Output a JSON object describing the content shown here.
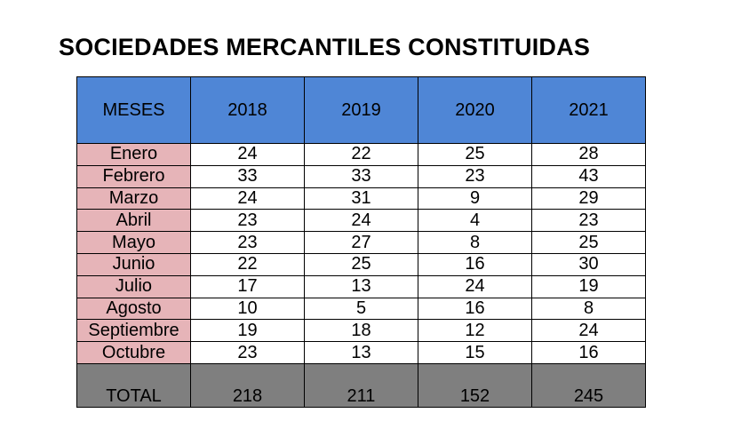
{
  "title": "SOCIEDADES MERCANTILES CONSTITUIDAS",
  "table": {
    "headers": [
      "MESES",
      "2018",
      "2019",
      "2020",
      "2021"
    ],
    "rows": [
      {
        "month": "Enero",
        "values": [
          "24",
          "22",
          "25",
          "28"
        ]
      },
      {
        "month": "Febrero",
        "values": [
          "33",
          "33",
          "23",
          "43"
        ]
      },
      {
        "month": "Marzo",
        "values": [
          "24",
          "31",
          "9",
          "29"
        ]
      },
      {
        "month": "Abril",
        "values": [
          "23",
          "24",
          "4",
          "23"
        ]
      },
      {
        "month": "Mayo",
        "values": [
          "23",
          "27",
          "8",
          "25"
        ]
      },
      {
        "month": "Junio",
        "values": [
          "22",
          "25",
          "16",
          "30"
        ]
      },
      {
        "month": "Julio",
        "values": [
          "17",
          "13",
          "24",
          "19"
        ]
      },
      {
        "month": "Agosto",
        "values": [
          "10",
          "5",
          "16",
          "8"
        ]
      },
      {
        "month": "Septiembre",
        "values": [
          "19",
          "18",
          "12",
          "24"
        ]
      },
      {
        "month": "Octubre",
        "values": [
          "23",
          "13",
          "15",
          "16"
        ]
      }
    ],
    "total": {
      "label": "TOTAL",
      "values": [
        "218",
        "211",
        "152",
        "245"
      ]
    }
  },
  "colors": {
    "header_bg": "#4f86d6",
    "month_bg": "#e6b4b8",
    "total_bg": "#7f7f7f"
  }
}
